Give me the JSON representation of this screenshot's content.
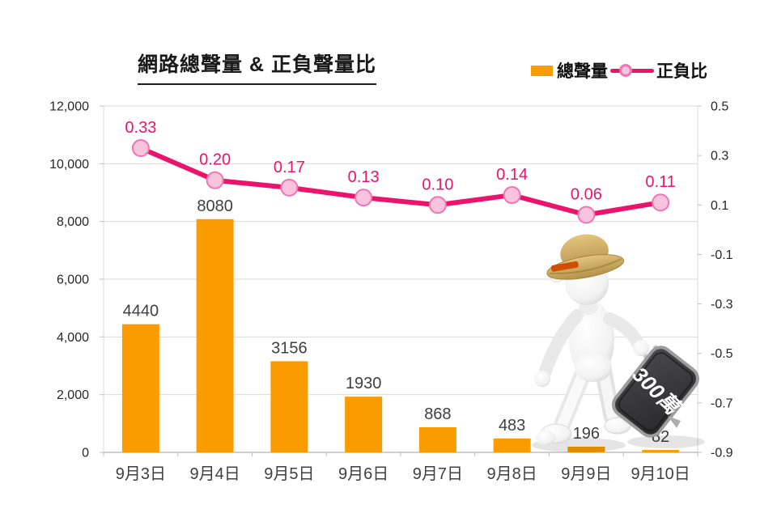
{
  "title": "網路總聲量 & 正負聲量比",
  "legend": {
    "bar_label": "總聲量",
    "line_label": "正負比"
  },
  "colors": {
    "bar": "#FA9C00",
    "line": "#EC136C",
    "marker_fill": "#F7C3DD",
    "marker_stroke": "#EF76B2",
    "bar_label_text": "#3F3F3F",
    "category_text": "#3F3F3F",
    "axis_text": "#262626",
    "gridline": "#D9D9D9",
    "axis_line": "#BFBFBF"
  },
  "chart_data": {
    "type": "combo-bar-line",
    "title": "網路總聲量 & 正負聲量比",
    "categories": [
      "9月3日",
      "9月4日",
      "9月5日",
      "9月6日",
      "9月7日",
      "9月8日",
      "9月9日",
      "9月10日"
    ],
    "series": [
      {
        "name": "總聲量",
        "type": "bar",
        "axis": "left",
        "values": [
          4440,
          8080,
          3156,
          1930,
          868,
          483,
          196,
          82
        ],
        "labels": [
          "4440",
          "8080",
          "3156",
          "1930",
          "868",
          "483",
          "196",
          "82"
        ]
      },
      {
        "name": "正負比",
        "type": "line",
        "axis": "right",
        "values": [
          0.33,
          0.2,
          0.17,
          0.13,
          0.1,
          0.14,
          0.06,
          0.11
        ],
        "labels": [
          "0.33",
          "0.20",
          "0.17",
          "0.13",
          "0.10",
          "0.14",
          "0.06",
          "0.11"
        ]
      }
    ],
    "left_axis": {
      "min": 0,
      "max": 12000,
      "step": 2000,
      "tick_labels": [
        "12,000",
        "10,000",
        "8,000",
        "6,000",
        "4,000",
        "2,000",
        "0"
      ]
    },
    "right_axis": {
      "min": -0.9,
      "max": 0.5,
      "step": 0.2,
      "tick_labels": [
        "0.5",
        "0.3",
        "0.1",
        "-0.1",
        "-0.3",
        "-0.5",
        "-0.7",
        "-0.9"
      ]
    },
    "grid": "horizontal-major-left-axis",
    "legend_position": "top-right"
  },
  "figurine": {
    "description": "white-3d-figure-with-cowboy-hat-dragging-suitcase",
    "suitcase_label": "300萬"
  }
}
